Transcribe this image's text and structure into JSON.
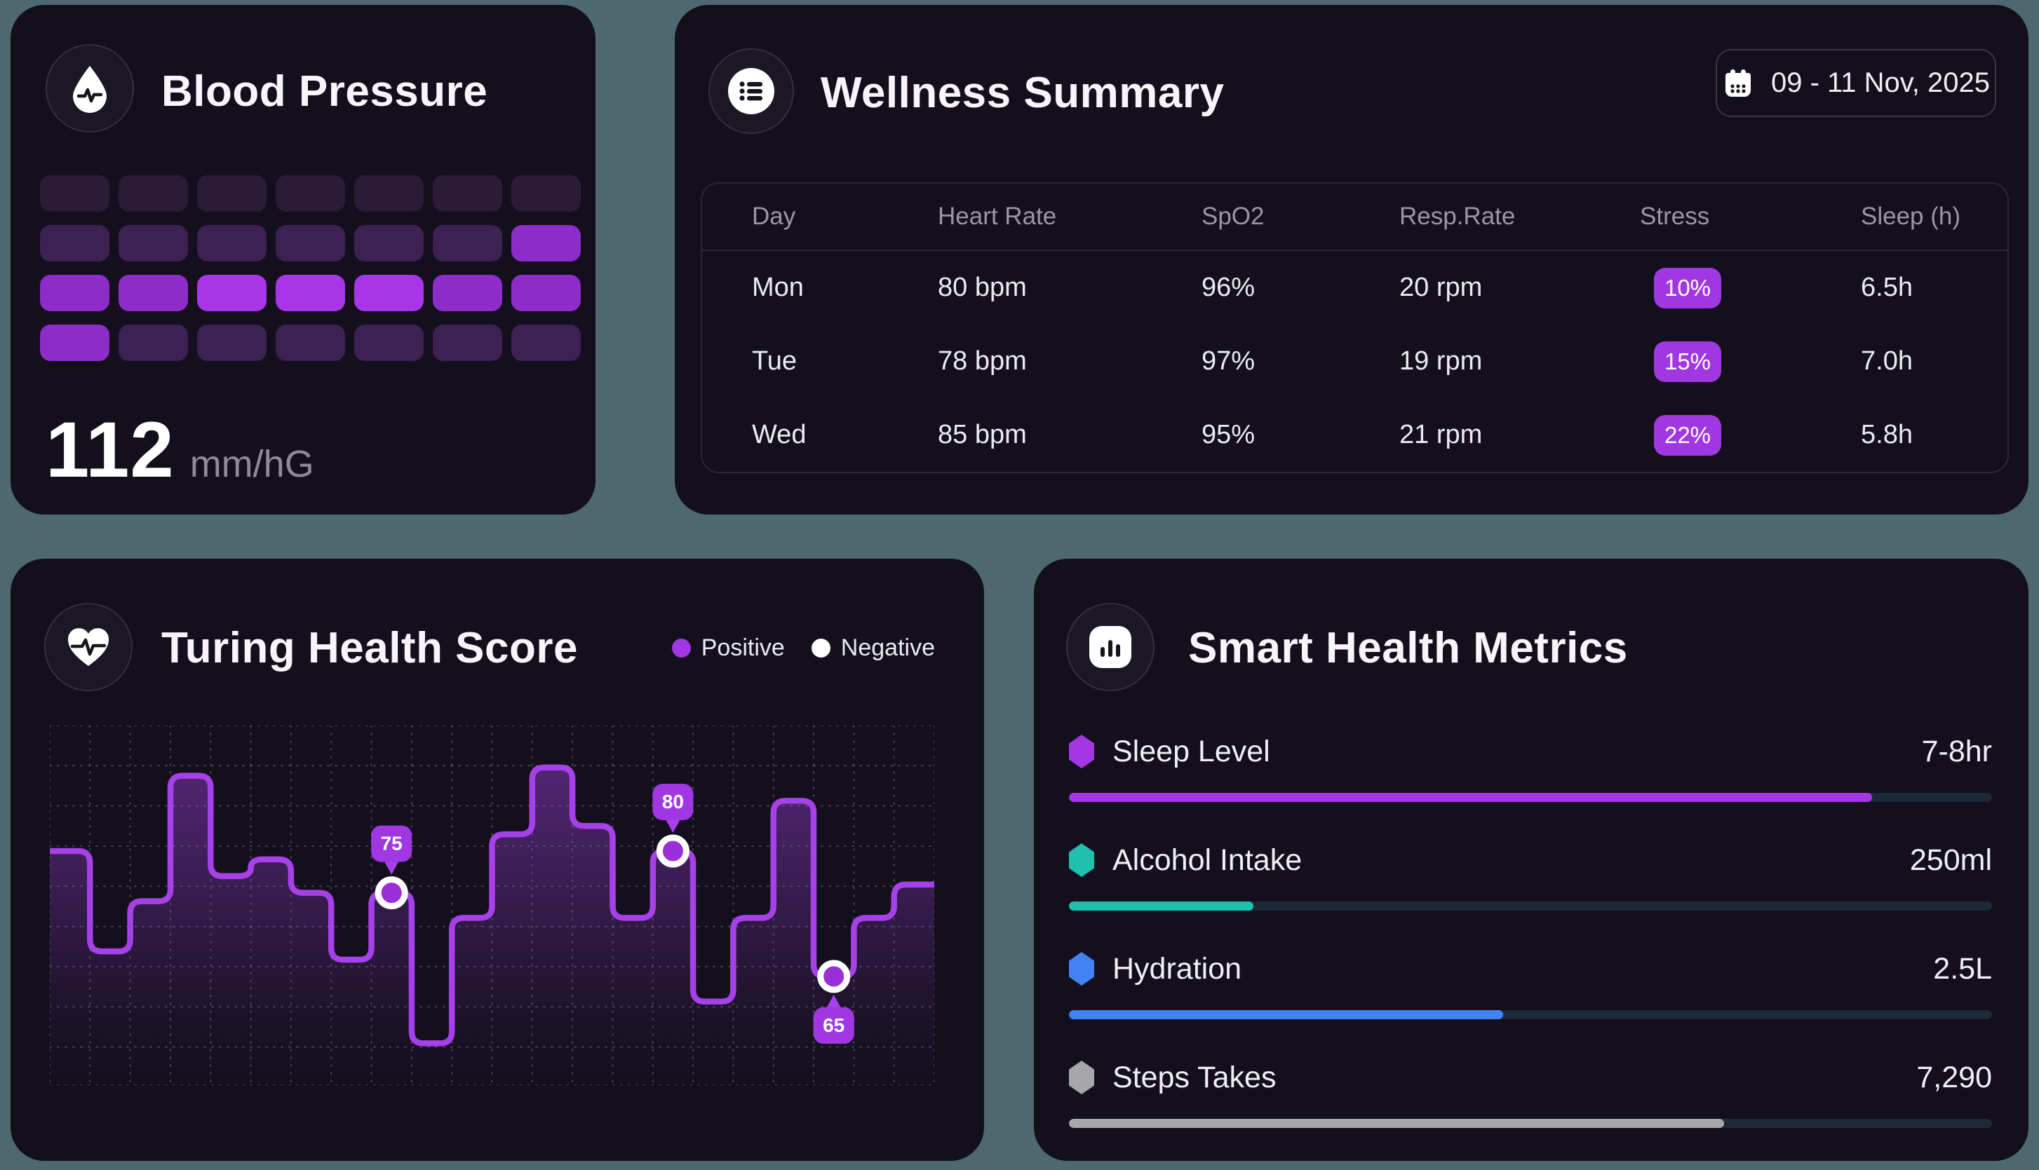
{
  "theme": {
    "page_bg": "#4d696e",
    "card_bg": "#130f1c",
    "accent_purple": "#a137e3",
    "track_color": "#1c2937"
  },
  "cards": {
    "blood_pressure": {
      "title": "Blood Pressure",
      "icon": "droplet-pulse-icon",
      "value": "112",
      "unit": "mm/hG",
      "heatmap": {
        "palette": [
          "#2b1a38",
          "#3c2152",
          "#8d2cc8",
          "#a836e8"
        ],
        "levels": [
          [
            0,
            0,
            0,
            0,
            0,
            0,
            0
          ],
          [
            1,
            1,
            1,
            1,
            1,
            1,
            2
          ],
          [
            2,
            2,
            3,
            3,
            3,
            2,
            2
          ],
          [
            2,
            1,
            1,
            1,
            1,
            1,
            1
          ]
        ]
      }
    },
    "wellness_summary": {
      "title": "Wellness Summary",
      "icon": "list-icon",
      "date_range": "09 - 11 Nov, 2025",
      "table": {
        "columns": [
          "Day",
          "Heart Rate",
          "SpO2",
          "Resp.Rate",
          "Stress",
          "Sleep (h)"
        ],
        "rows": [
          {
            "day": "Mon",
            "heart_rate": "80 bpm",
            "spo2": "96%",
            "resp_rate": "20 rpm",
            "stress": "10%",
            "sleep": "6.5h"
          },
          {
            "day": "Tue",
            "heart_rate": "78 bpm",
            "spo2": "97%",
            "resp_rate": "19 rpm",
            "stress": "15%",
            "sleep": "7.0h"
          },
          {
            "day": "Wed",
            "heart_rate": "85 bpm",
            "spo2": "95%",
            "resp_rate": "21 rpm",
            "stress": "22%",
            "sleep": "5.8h"
          }
        ]
      }
    },
    "turing_health_score": {
      "title": "Turing Health Score",
      "icon": "heart-pulse-icon",
      "legend": [
        {
          "label": "Positive",
          "color": "#a137e3"
        },
        {
          "label": "Negative",
          "color": "#ffffff"
        }
      ]
    },
    "smart_health_metrics": {
      "title": "Smart Health Metrics",
      "icon": "bar-chart-icon",
      "items": [
        {
          "label": "Sleep Level",
          "value": "7-8hr",
          "color": "#a636e4",
          "fill": 0.87
        },
        {
          "label": "Alcohol Intake",
          "value": "250ml",
          "color": "#1fc0ae",
          "fill": 0.2
        },
        {
          "label": "Hydration",
          "value": "2.5L",
          "color": "#4183f3",
          "fill": 0.47
        },
        {
          "label": "Steps Takes",
          "value": "7,290",
          "color": "#a7a6ab",
          "fill": 0.71
        }
      ]
    }
  },
  "chart_data": {
    "type": "area",
    "subtype": "rounded-step",
    "title": "Turing Health Score",
    "x": [
      1,
      2,
      3,
      4,
      5,
      6,
      7,
      8,
      9,
      10,
      11,
      12,
      13,
      14,
      15,
      16,
      17,
      18,
      19,
      20,
      21,
      22
    ],
    "values": [
      80,
      68,
      74,
      89,
      77,
      79,
      75,
      67,
      75,
      57,
      72,
      82,
      90,
      83,
      72,
      80,
      62,
      72,
      86,
      65,
      72,
      76
    ],
    "ylim": [
      52,
      95
    ],
    "grid": "dotted",
    "legend_position": "top-right",
    "line_color": "#a640e8",
    "fill_color": "#9e40db",
    "markers": [
      {
        "index": 8,
        "label": "75",
        "position": "above"
      },
      {
        "index": 15,
        "label": "80",
        "position": "above"
      },
      {
        "index": 19,
        "label": "65",
        "position": "below"
      }
    ]
  }
}
